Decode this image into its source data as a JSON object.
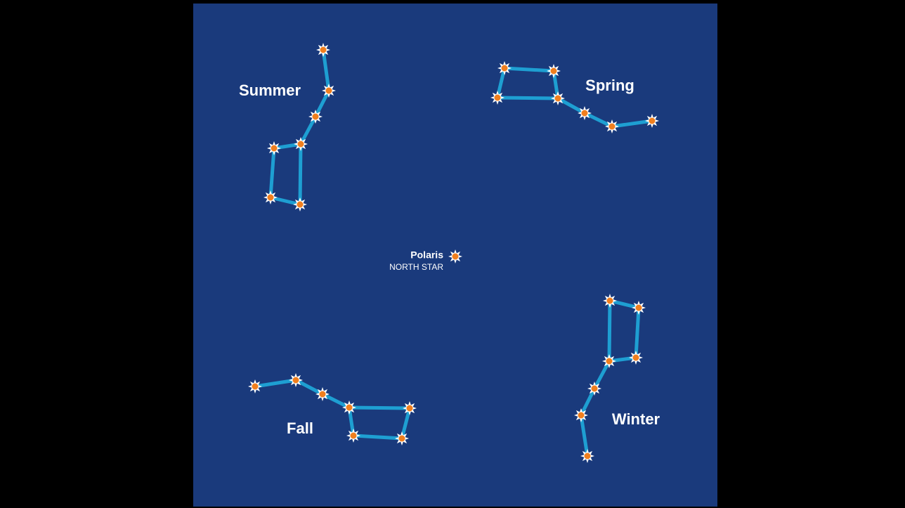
{
  "labels": {
    "summer": "Summer",
    "spring": "Spring",
    "fall": "Fall",
    "winter": "Winter",
    "polaris": "Polaris",
    "north_star": "NORTH STAR"
  }
}
